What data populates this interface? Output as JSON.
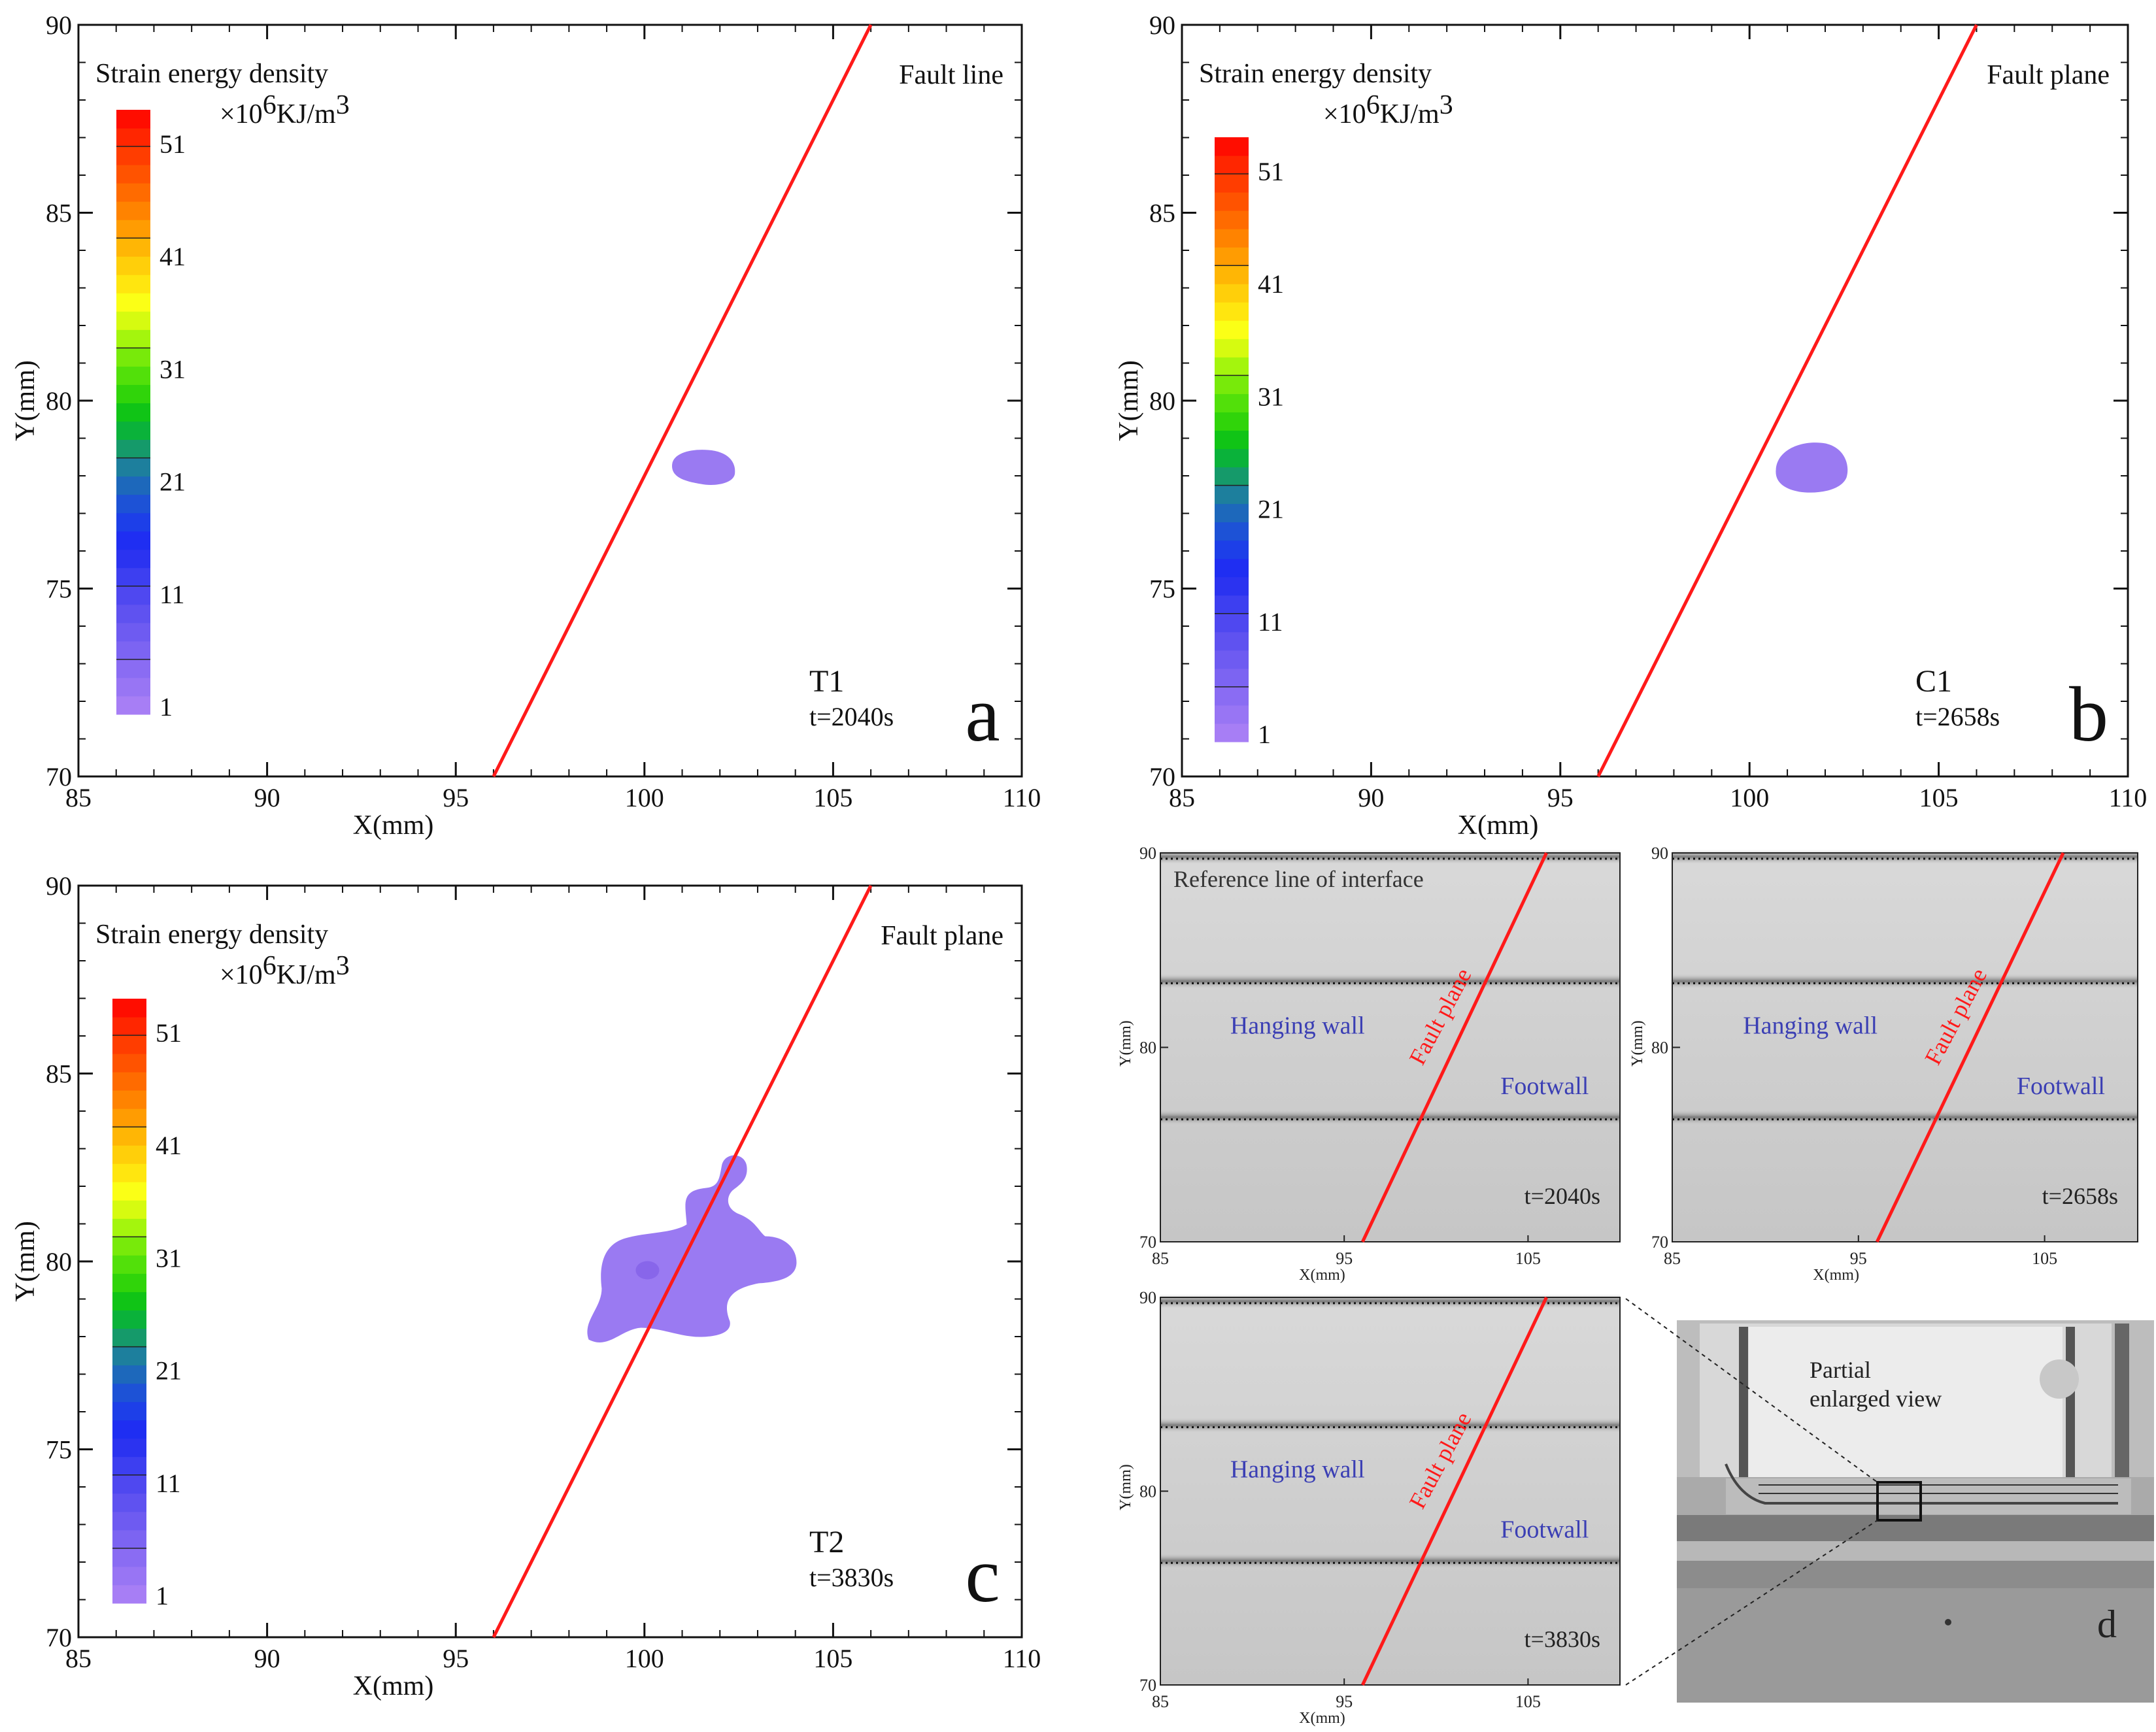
{
  "figure": {
    "panels": [
      {
        "id": "a",
        "letter": "a",
        "case": "T1",
        "time": "t=2040s",
        "fault_label": "Fault line",
        "legend_title": "Strain energy density",
        "legend_unit_prefix": "×10",
        "legend_unit_exp": "6",
        "legend_unit_mid": "KJ/m",
        "legend_unit_pow": "3",
        "xlabel": "X(mm)",
        "ylabel": "Y(mm)"
      },
      {
        "id": "b",
        "letter": "b",
        "case": "C1",
        "time": "t=2658s",
        "fault_label": "Fault plane",
        "legend_title": "Strain energy density",
        "legend_unit_prefix": "×10",
        "legend_unit_exp": "6",
        "legend_unit_mid": "KJ/m",
        "legend_unit_pow": "3",
        "xlabel": "X(mm)",
        "ylabel": "Y(mm)"
      },
      {
        "id": "c",
        "letter": "c",
        "case": "T2",
        "time": "t=3830s",
        "fault_label": "Fault plane",
        "legend_title": "Strain energy density",
        "legend_unit_prefix": "×10",
        "legend_unit_exp": "6",
        "legend_unit_mid": "KJ/m",
        "legend_unit_pow": "3",
        "xlabel": "X(mm)",
        "ylabel": "Y(mm)"
      }
    ],
    "photos": {
      "letter": "d",
      "reference_label": "Reference line of interface",
      "hanging_wall": "Hanging wall",
      "footwall": "Footwall",
      "fault_plane": "Fault plane",
      "partial_label_1": "Partial",
      "partial_label_2": "enlarged view",
      "xlabel": "X(mm)",
      "ylabel": "Y(mm)",
      "xticks": [
        "85",
        "95",
        "105"
      ],
      "yticks": [
        "90",
        "80",
        "70"
      ],
      "times": [
        "t=2040s",
        "t=2658s",
        "t=3830s"
      ]
    }
  },
  "chart_data": [
    {
      "type": "contour",
      "panel": "a",
      "title": "T1 t=2040s",
      "xlabel": "X(mm)",
      "ylabel": "Y(mm)",
      "xlim": [
        85,
        110
      ],
      "ylim": [
        70,
        90
      ],
      "xticks": [
        85,
        90,
        95,
        100,
        105,
        110
      ],
      "yticks": [
        70,
        75,
        80,
        85,
        90
      ],
      "colorbar": {
        "label": "Strain energy density ×10^6 KJ/m^3",
        "ticks": [
          1,
          11,
          21,
          31,
          41,
          51
        ]
      },
      "fault_line": [
        [
          96,
          70
        ],
        [
          106,
          90
        ]
      ],
      "contour_region": {
        "center": [
          101.6,
          78.2
        ],
        "level": 1
      }
    },
    {
      "type": "contour",
      "panel": "b",
      "title": "C1 t=2658s",
      "xlabel": "X(mm)",
      "ylabel": "Y(mm)",
      "xlim": [
        85,
        110
      ],
      "ylim": [
        70,
        90
      ],
      "xticks": [
        85,
        90,
        95,
        100,
        105,
        110
      ],
      "yticks": [
        70,
        75,
        80,
        85,
        90
      ],
      "colorbar": {
        "label": "Strain energy density ×10^6 KJ/m^3",
        "ticks": [
          1,
          11,
          21,
          31,
          41,
          51
        ]
      },
      "fault_line": [
        [
          96,
          70
        ],
        [
          106,
          90
        ]
      ],
      "contour_region": {
        "center": [
          101.7,
          78.2
        ],
        "level": 1
      }
    },
    {
      "type": "contour",
      "panel": "c",
      "title": "T2 t=3830s",
      "xlabel": "X(mm)",
      "ylabel": "Y(mm)",
      "xlim": [
        85,
        110
      ],
      "ylim": [
        70,
        90
      ],
      "xticks": [
        85,
        90,
        95,
        100,
        105,
        110
      ],
      "yticks": [
        70,
        75,
        80,
        85,
        90
      ],
      "colorbar": {
        "label": "Strain energy density ×10^6 KJ/m^3",
        "ticks": [
          1,
          11,
          21,
          31,
          41,
          51
        ]
      },
      "fault_line": [
        [
          96,
          70
        ],
        [
          106,
          90
        ]
      ],
      "contour_region": {
        "center": [
          100.6,
          79.8
        ],
        "level": 1
      }
    }
  ],
  "colors": {
    "fault": "#ff1a1a",
    "blob": "#9a7af2",
    "blob_inner": "#8866ea",
    "wall_label": "#3b3fb4",
    "colormap": [
      "#a77ef5",
      "#9875f4",
      "#8a6cf3",
      "#7c64f2",
      "#6e5bf1",
      "#5f52f0",
      "#4f48f0",
      "#3d3ff0",
      "#2b33f0",
      "#1f2ef2",
      "#1d3fe8",
      "#1d52d6",
      "#1d68bb",
      "#1d7f9d",
      "#159a6a",
      "#0ab23a",
      "#10c416",
      "#30d40a",
      "#52e00a",
      "#78ea0a",
      "#a4f50d",
      "#d6fb10",
      "#fbff16",
      "#ffe60f",
      "#ffcf0a",
      "#ffb605",
      "#ff9c02",
      "#ff8300",
      "#ff6b00",
      "#ff5300",
      "#ff3d00",
      "#ff2600",
      "#ff0d00"
    ]
  }
}
